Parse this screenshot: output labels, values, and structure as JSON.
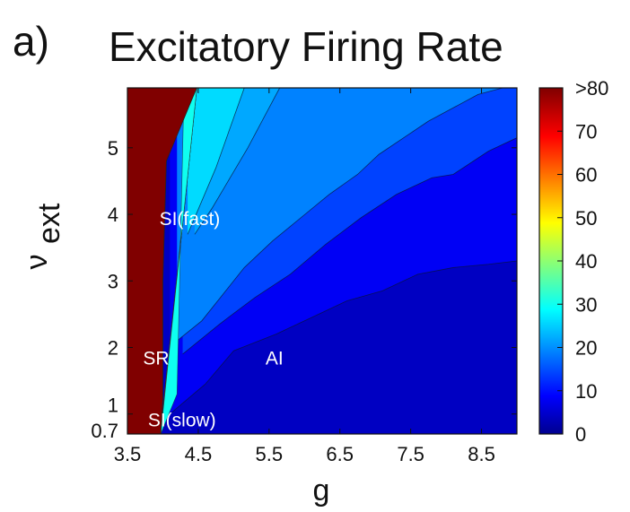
{
  "panel_letter": "a)",
  "chart_data": {
    "type": "heatmap",
    "title": "Excitatory Firing Rate",
    "xlabel": "g",
    "ylabel": "ν",
    "ylabel_subscript": "ext",
    "x_ticks": [
      "3.5",
      "4.5",
      "5.5",
      "6.5",
      "7.5",
      "8.5"
    ],
    "x_tick_values": [
      3.5,
      4.5,
      5.5,
      6.5,
      7.5,
      8.5
    ],
    "y_ticks": [
      "0.7",
      "1",
      "2",
      "3",
      "4",
      "5"
    ],
    "y_tick_values": [
      0.7,
      1,
      2,
      3,
      4,
      5
    ],
    "xlim": [
      3.5,
      9.0
    ],
    "ylim": [
      0.7,
      5.9
    ],
    "colorbar": {
      "ticks": [
        "0",
        "10",
        "20",
        "30",
        "40",
        "50",
        "60",
        "70",
        ">80"
      ],
      "tick_values": [
        0,
        10,
        20,
        30,
        40,
        50,
        60,
        70,
        80
      ],
      "range": [
        0,
        80
      ],
      "colormap": "jet",
      "colormap_stops": [
        "#00008f",
        "#0000ff",
        "#00ffff",
        "#ffff00",
        "#ff0000",
        "#800000"
      ]
    },
    "regions": [
      {
        "label": "SR",
        "g": 3.72,
        "nu": 1.85,
        "rate": ">80"
      },
      {
        "label": "SI(fast)",
        "g": 4.38,
        "nu": 3.95,
        "rate": "28-35"
      },
      {
        "label": "AI",
        "g": 5.45,
        "nu": 1.85,
        "rate": "0-10"
      },
      {
        "label": "SI(slow)",
        "g": 4.27,
        "nu": 0.92,
        "rate": "0-5"
      }
    ],
    "sr_boundary": {
      "g": [
        3.97,
        4.0,
        4.0,
        4.05,
        4.4,
        4.48
      ],
      "nu": [
        0.7,
        1.2,
        3.0,
        4.8,
        5.7,
        5.9
      ]
    },
    "contours": [
      {
        "level": 0,
        "g": [
          4.1,
          4.6,
          5.0,
          5.6,
          6.1,
          6.6,
          7.1,
          7.6,
          8.1,
          8.6,
          9.0
        ],
        "nu": [
          1.0,
          1.45,
          1.95,
          2.2,
          2.45,
          2.7,
          2.85,
          3.1,
          3.2,
          3.25,
          3.3
        ]
      },
      {
        "level": 10,
        "g": [
          4.28,
          4.8,
          5.3,
          5.8,
          6.3,
          6.8,
          7.3,
          7.8,
          8.1,
          8.6,
          9.0
        ],
        "nu": [
          1.9,
          2.35,
          2.75,
          3.1,
          3.55,
          3.95,
          4.3,
          4.55,
          4.6,
          4.95,
          5.15
        ]
      },
      {
        "level": 15,
        "g": [
          4.2,
          4.55,
          4.85,
          5.15,
          5.55,
          5.95,
          6.35,
          6.75,
          7.05,
          7.4,
          7.75,
          8.1,
          8.45,
          8.8
        ],
        "nu": [
          2.1,
          2.4,
          2.8,
          3.2,
          3.6,
          3.95,
          4.3,
          4.6,
          4.9,
          5.15,
          5.4,
          5.6,
          5.8,
          5.9
        ]
      },
      {
        "level": 18,
        "g": [
          4.45,
          4.7,
          4.95,
          5.2,
          5.45,
          5.65
        ],
        "nu": [
          3.7,
          4.1,
          4.55,
          5.0,
          5.5,
          5.9
        ]
      },
      {
        "level": 22,
        "g": [
          4.35,
          4.55,
          4.75,
          4.95,
          5.15
        ],
        "nu": [
          3.7,
          4.2,
          4.7,
          5.3,
          5.9
        ]
      }
    ]
  }
}
